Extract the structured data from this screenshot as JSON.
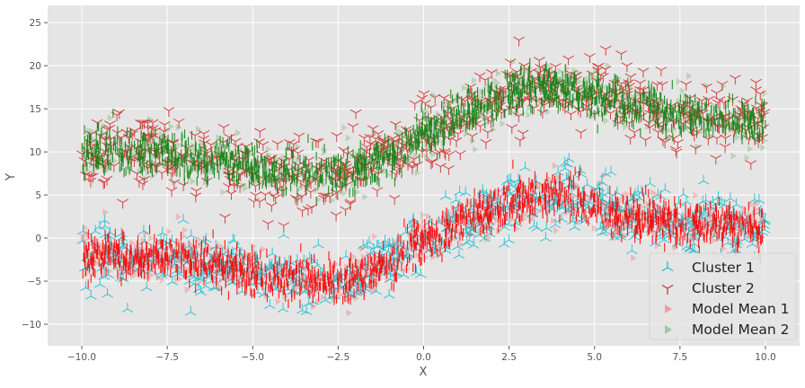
{
  "chart_data": {
    "type": "scatter",
    "title": "",
    "xlabel": "X",
    "ylabel": "Y",
    "xlim": [
      -11,
      11
    ],
    "ylim": [
      -12.5,
      27
    ],
    "xticks": [
      -10.0,
      -7.5,
      -5.0,
      -2.5,
      0.0,
      2.5,
      5.0,
      7.5,
      10.0
    ],
    "xtick_labels": [
      "−10.0",
      "−7.5",
      "−5.0",
      "−2.5",
      "0.0",
      "2.5",
      "5.0",
      "7.5",
      "10.0"
    ],
    "yticks": [
      -10,
      -5,
      0,
      5,
      10,
      15,
      20,
      25
    ],
    "ytick_labels": [
      "−10",
      "−5",
      "0",
      "5",
      "10",
      "15",
      "20",
      "25"
    ],
    "grid": true,
    "style": "ggplot",
    "legend_position": "lower-right",
    "x_domain": [
      -10,
      10
    ],
    "series": [
      {
        "name": "Cluster 1",
        "marker": "tri_up",
        "color": "#17becf",
        "spread": 1.8,
        "curve": {
          "x": [
            -10,
            -8,
            -6,
            -4,
            -2.5,
            -1,
            0,
            1.5,
            3,
            4,
            5,
            6,
            8,
            10
          ],
          "y": [
            -2,
            -2,
            -3,
            -5,
            -5,
            -3,
            0,
            2.5,
            4.5,
            5,
            4,
            2.5,
            1.5,
            1.5
          ]
        }
      },
      {
        "name": "Cluster 2",
        "marker": "tri_down",
        "color": "#d62728",
        "spread": 2.0,
        "curve": {
          "x": [
            -10,
            -8,
            -6,
            -4,
            -2.5,
            -1,
            0,
            1.5,
            3,
            4,
            5,
            6,
            8,
            10
          ],
          "y": [
            10,
            10,
            9,
            7.5,
            7.5,
            9.5,
            12,
            15,
            17.5,
            17.5,
            16.5,
            15.5,
            14,
            13.5
          ]
        }
      },
      {
        "name": "Model Mean 1",
        "marker": "triangle_right",
        "color": "#ff0000",
        "alpha": 0.18,
        "spread": 1.4,
        "curve": {
          "x": [
            -10,
            -8,
            -6,
            -4,
            -2.5,
            -1,
            0,
            1.5,
            3,
            4,
            5,
            6,
            8,
            10
          ],
          "y": [
            -2,
            -2,
            -3,
            -5,
            -5,
            -3,
            0,
            2.5,
            4.5,
            5,
            4,
            2.5,
            1.5,
            1.5
          ]
        }
      },
      {
        "name": "Model Mean 2",
        "marker": "triangle_right",
        "color": "#008000",
        "alpha": 0.18,
        "spread": 1.5,
        "curve": {
          "x": [
            -10,
            -8,
            -6,
            -4,
            -2.5,
            -1,
            0,
            1.5,
            3,
            4,
            5,
            6,
            8,
            10
          ],
          "y": [
            10,
            10,
            9,
            7.5,
            7.5,
            9.5,
            12,
            15,
            17.5,
            17.5,
            16.5,
            15.5,
            14,
            13.5
          ]
        }
      }
    ]
  },
  "colors": {
    "plot_background": "#e5e5e5",
    "grid": "#ffffff",
    "tick_text": "#555555",
    "dense_mean_1": "#ff0000",
    "dense_mean_2": "#118011"
  }
}
